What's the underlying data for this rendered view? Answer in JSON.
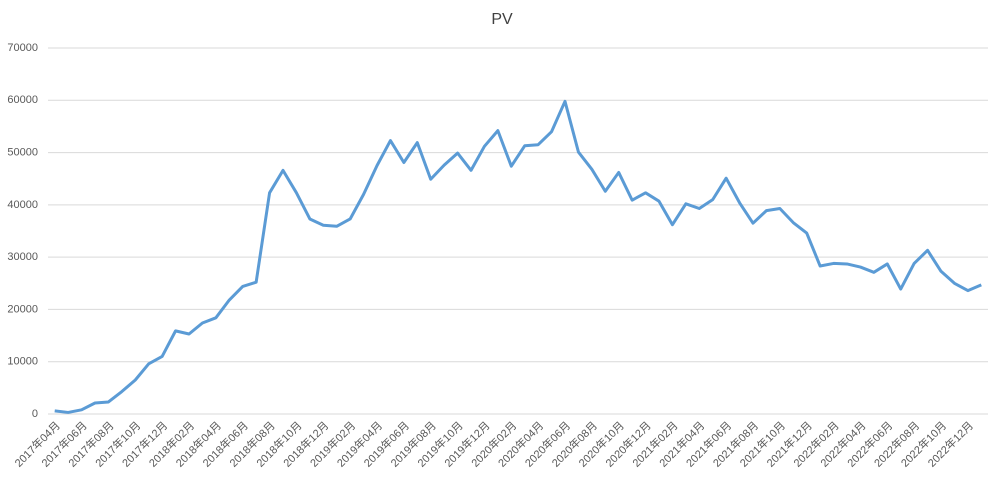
{
  "chart_data": {
    "type": "line",
    "title": "PV",
    "categories": [
      "2017年04月",
      null,
      "2017年06月",
      null,
      "2017年08月",
      null,
      "2017年10月",
      null,
      "2017年12月",
      null,
      "2018年02月",
      null,
      "2018年04月",
      null,
      "2018年06月",
      null,
      "2018年08月",
      null,
      "2018年10月",
      null,
      "2018年12月",
      null,
      "2019年02月",
      null,
      "2019年04月",
      null,
      "2019年06月",
      null,
      "2019年08月",
      null,
      "2019年10月",
      null,
      "2019年12月",
      null,
      "2020年02月",
      null,
      "2020年04月",
      null,
      "2020年06月",
      null,
      "2020年08月",
      null,
      "2020年10月",
      null,
      "2020年12月",
      null,
      "2021年02月",
      null,
      "2021年04月",
      null,
      "2021年06月",
      null,
      "2021年08月",
      null,
      "2021年10月",
      null,
      "2021年12月",
      null,
      "2022年02月",
      null,
      "2022年04月",
      null,
      "2022年06月",
      null,
      "2022年08月",
      null,
      "2022年10月",
      null,
      "2022年12月",
      null
    ],
    "series": [
      {
        "name": "PV",
        "color": "#5b9bd5",
        "values": [
          600,
          300,
          800,
          2100,
          2300,
          4300,
          6500,
          9600,
          11000,
          15900,
          15300,
          17400,
          18400,
          21800,
          24400,
          25200,
          42300,
          46600,
          42300,
          37300,
          36100,
          35900,
          37300,
          42000,
          47500,
          52300,
          48100,
          51900,
          44900,
          47600,
          49900,
          46600,
          51200,
          54200,
          47400,
          51300,
          51500,
          54000,
          59800,
          50100,
          46800,
          42600,
          46200,
          40900,
          42300,
          40700,
          36200,
          40200,
          39300,
          41000,
          45100,
          40400,
          36500,
          38900,
          39300,
          36600,
          34600,
          28300,
          28800,
          28700,
          28100,
          27100,
          28700,
          23900,
          28800,
          31300,
          27300,
          25000,
          23600,
          24700
        ]
      }
    ],
    "ylim": [
      0,
      70000
    ],
    "yticks": [
      0,
      10000,
      20000,
      30000,
      40000,
      50000,
      60000,
      70000
    ],
    "grid": true
  }
}
